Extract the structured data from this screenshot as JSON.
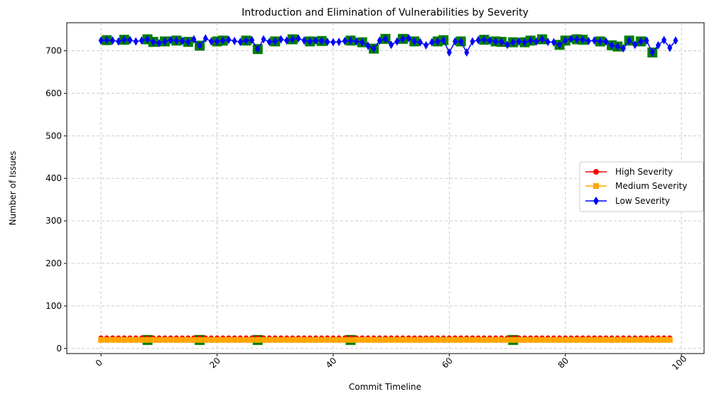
{
  "chart_data": {
    "type": "line",
    "title": "Introduction and Elimination of Vulnerabilities by Severity",
    "xlabel": "Commit Timeline",
    "ylabel": "Number of Issues",
    "xlim": [
      -5.9,
      103.9
    ],
    "ylim": [
      -12,
      766
    ],
    "x_ticks": [
      0,
      20,
      40,
      60,
      80,
      100
    ],
    "y_ticks": [
      0,
      100,
      200,
      300,
      400,
      500,
      600,
      700
    ],
    "grid": true,
    "legend_position": "center-right",
    "series": [
      {
        "name": "High Severity",
        "color": "#ff0000",
        "marker": "circle",
        "values": [
          25,
          25,
          25,
          25,
          25,
          25,
          25,
          25,
          25,
          25,
          25,
          25,
          25,
          25,
          25,
          25,
          25,
          25,
          25,
          25,
          25,
          25,
          25,
          25,
          25,
          25,
          25,
          25,
          25,
          25,
          25,
          25,
          25,
          25,
          25,
          25,
          25,
          25,
          25,
          25,
          25,
          25,
          25,
          25,
          25,
          25,
          25,
          25,
          25,
          25,
          25,
          25,
          25,
          25,
          25,
          25,
          25,
          25,
          25,
          25,
          25,
          25,
          25,
          25,
          25,
          25,
          25,
          25,
          25,
          25,
          25,
          25,
          25,
          25,
          25,
          25,
          25,
          25,
          25,
          25,
          25,
          25,
          25,
          25,
          25,
          25,
          25,
          25,
          25,
          25,
          25,
          25,
          25,
          25,
          25,
          25,
          25,
          25,
          25
        ]
      },
      {
        "name": "Medium Severity",
        "color": "#ffa500",
        "marker": "square",
        "values": [
          20,
          20,
          20,
          20,
          20,
          20,
          20,
          20,
          20,
          20,
          20,
          20,
          20,
          20,
          20,
          20,
          20,
          20,
          20,
          20,
          20,
          20,
          20,
          20,
          20,
          20,
          20,
          20,
          20,
          20,
          20,
          20,
          20,
          20,
          20,
          20,
          20,
          20,
          20,
          20,
          20,
          20,
          20,
          20,
          20,
          20,
          20,
          20,
          20,
          20,
          20,
          20,
          20,
          20,
          20,
          20,
          20,
          20,
          20,
          20,
          20,
          20,
          20,
          20,
          20,
          20,
          20,
          20,
          20,
          20,
          20,
          20,
          20,
          20,
          20,
          20,
          20,
          20,
          20,
          20,
          20,
          20,
          20,
          20,
          20,
          20,
          20,
          20,
          20,
          20,
          20,
          20,
          20,
          20,
          20,
          20,
          20,
          20,
          20
        ]
      },
      {
        "name": "Low Severity",
        "color": "#0000ff",
        "marker": "diamond",
        "values": [
          724,
          725,
          724,
          722,
          726,
          725,
          722,
          724,
          727,
          721,
          718,
          722,
          725,
          724,
          723,
          721,
          727,
          712,
          729,
          722,
          722,
          724,
          726,
          723,
          721,
          724,
          725,
          704,
          727,
          721,
          722,
          727,
          724,
          727,
          729,
          724,
          722,
          724,
          723,
          721,
          720,
          721,
          723,
          724,
          722,
          720,
          712,
          705,
          724,
          728,
          714,
          722,
          728,
          730,
          722,
          720,
          713,
          720,
          722,
          725,
          696,
          722,
          722,
          696,
          722,
          725,
          726,
          724,
          722,
          721,
          714,
          720,
          722,
          720,
          724,
          722,
          727,
          721,
          720,
          714,
          724,
          728,
          727,
          726,
          723,
          724,
          722,
          722,
          713,
          710,
          706,
          724,
          714,
          722,
          724,
          696,
          713,
          725,
          707,
          724
        ]
      }
    ],
    "highlights": {
      "color": "#008000",
      "low_x": [
        1,
        4,
        8,
        9,
        11,
        13,
        15,
        17,
        20,
        21,
        25,
        27,
        30,
        33,
        36,
        38,
        43,
        45,
        47,
        49,
        52,
        54,
        58,
        59,
        62,
        66,
        68,
        69,
        71,
        73,
        74,
        76,
        79,
        80,
        82,
        83,
        86,
        88,
        89,
        91,
        93,
        95
      ],
      "medium_x": [
        8,
        17,
        27,
        43,
        71
      ]
    }
  }
}
